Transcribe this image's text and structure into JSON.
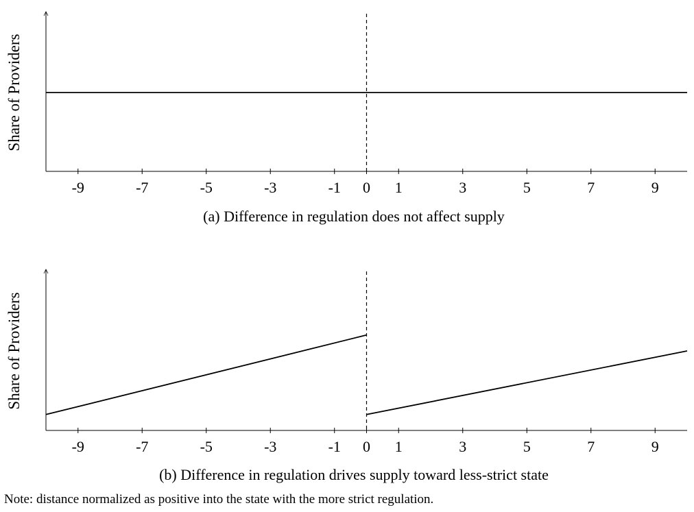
{
  "chart_data": [
    {
      "type": "line",
      "caption": "(a) Difference in regulation does not affect supply",
      "ylabel": "Share of Providers",
      "x_ticks": [
        -9,
        -7,
        -5,
        -3,
        -1,
        0,
        1,
        3,
        5,
        7,
        9
      ],
      "xlim": [
        -10,
        10
      ],
      "ylim": [
        0,
        1
      ],
      "cutoff": 0,
      "segments": [
        {
          "x": [
            -10,
            10
          ],
          "y": [
            0.5,
            0.5
          ]
        }
      ]
    },
    {
      "type": "line",
      "caption": "(b) Difference in regulation drives supply toward less-strict state",
      "ylabel": "Share of Providers",
      "x_ticks": [
        -9,
        -7,
        -5,
        -3,
        -1,
        0,
        1,
        3,
        5,
        7,
        9
      ],
      "xlim": [
        -10,
        10
      ],
      "ylim": [
        0,
        1
      ],
      "cutoff": 0,
      "segments": [
        {
          "x": [
            -10,
            0
          ],
          "y": [
            0.1,
            0.6
          ]
        },
        {
          "x": [
            0,
            10
          ],
          "y": [
            0.1,
            0.5
          ]
        }
      ]
    }
  ],
  "note": "Note: distance normalized as positive into the state with the more strict regulation."
}
